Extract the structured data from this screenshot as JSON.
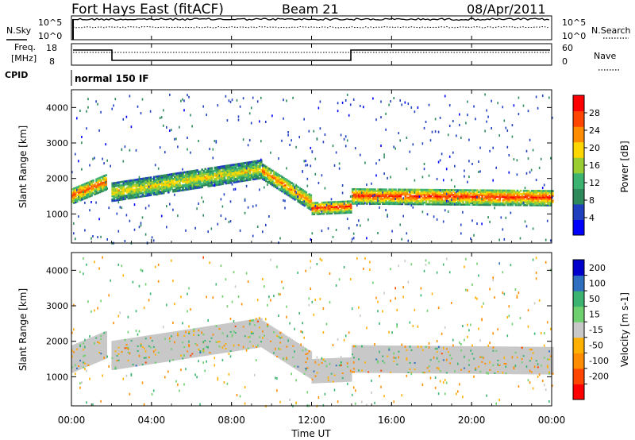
{
  "header": {
    "station": "Fort Hays East (fitACF)",
    "beam": "Beam 21",
    "date": "08/Apr/2011"
  },
  "noise_panel": {
    "left_label": "N.Sky",
    "left_ticks": [
      "10^5",
      "10^0"
    ],
    "right_label": "N.Search",
    "right_ticks": [
      "10^5",
      "10^0"
    ]
  },
  "freq_panel": {
    "left_label_line1": "Freq.",
    "left_label_line2": "[MHz]",
    "left_ticks": [
      "18",
      "8"
    ],
    "right_label": "Nave",
    "right_ticks": [
      "60",
      "0"
    ]
  },
  "cpid": {
    "label": "CPID",
    "value": "normal 150 IF"
  },
  "colors": {
    "power_scale": [
      "#0000ff",
      "#1f3fbf",
      "#2e8a5a",
      "#3cb371",
      "#9acd32",
      "#ffd700",
      "#ff8c00",
      "#ff4500",
      "#ff0000"
    ],
    "velocity_scale": [
      "#ff0000",
      "#ff4500",
      "#ff8c00",
      "#ffb000",
      "#c8c8c8",
      "#6fd06f",
      "#3cb371",
      "#2e6fbf",
      "#0000cd"
    ],
    "ground_scatter": "#c8c8c8"
  },
  "chart_data": [
    {
      "type": "heatmap",
      "name": "power",
      "ylabel": "Slant Range [km]",
      "yticks": [
        "4000",
        "3000",
        "2000",
        "1000"
      ],
      "ylim": [
        180,
        4500
      ],
      "colorbar": {
        "label": "Power [dB]",
        "ticks": [
          "28",
          "24",
          "20",
          "16",
          "12",
          "8",
          "4"
        ],
        "range": [
          0,
          32
        ]
      },
      "bands": [
        {
          "t": [
            0.0,
            1.7
          ],
          "center_km": [
            1500,
            1900
          ],
          "width_km": 450,
          "peak_db": 26
        },
        {
          "t": [
            2.0,
            9.5
          ],
          "center_km": [
            1600,
            2250
          ],
          "width_km": 500,
          "peak_db": 20
        },
        {
          "t": [
            9.5,
            12.0
          ],
          "center_km": [
            2200,
            1300
          ],
          "width_km": 450,
          "peak_db": 24
        },
        {
          "t": [
            12.0,
            14.0
          ],
          "center_km": [
            1150,
            1200
          ],
          "width_km": 350,
          "peak_db": 28
        },
        {
          "t": [
            14.0,
            24.0
          ],
          "center_km": [
            1500,
            1450
          ],
          "width_km": 450,
          "peak_db": 28
        }
      ]
    },
    {
      "type": "heatmap",
      "name": "velocity",
      "ylabel": "Slant Range [km]",
      "yticks": [
        "4000",
        "3000",
        "2000",
        "1000"
      ],
      "ylim": [
        180,
        4500
      ],
      "colorbar": {
        "label": "Velocity [m s-1]",
        "ticks": [
          "200",
          "100",
          "50",
          "15",
          "-15",
          "-50",
          "-100",
          "-200"
        ],
        "range": [
          -250,
          250
        ]
      }
    }
  ],
  "x_axis": {
    "label": "Time UT",
    "ticks": [
      "00:00",
      "04:00",
      "08:00",
      "12:00",
      "16:00",
      "20:00",
      "00:00"
    ],
    "range_hours": [
      0,
      24
    ]
  }
}
